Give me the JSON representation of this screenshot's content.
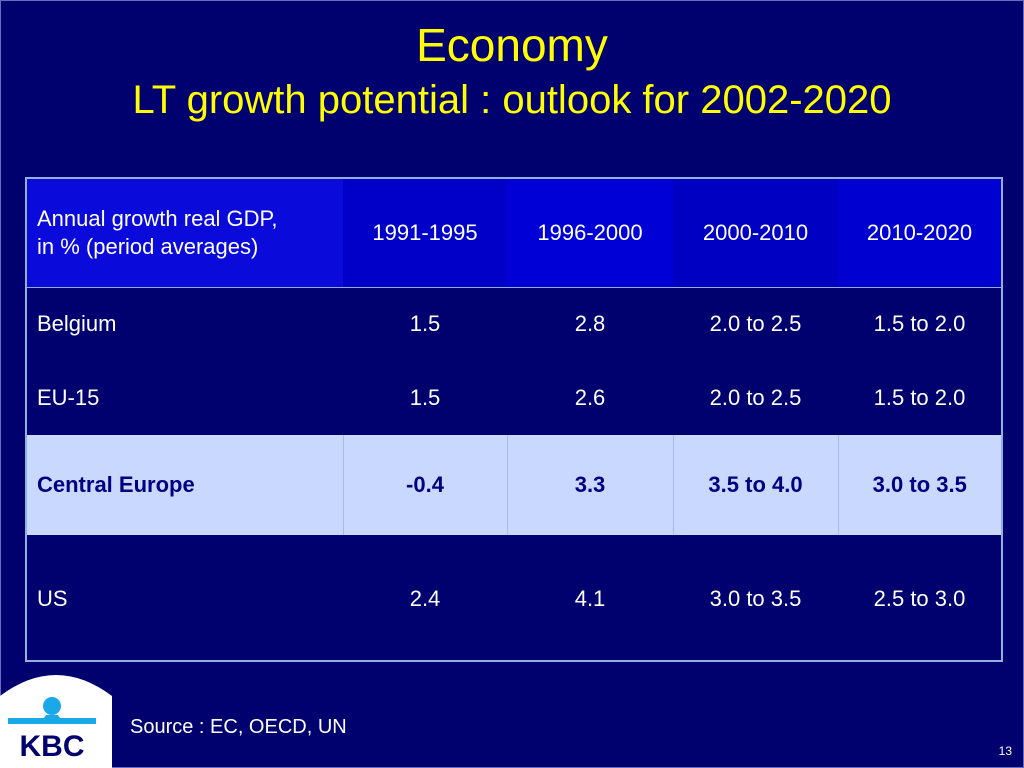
{
  "slide": {
    "title_line1": "Economy",
    "title_line2": "LT growth potential : outlook for 2002-2020",
    "source": "Source : EC, OECD, UN",
    "page_number": "13",
    "logo_text": "KBC"
  },
  "table": {
    "header": [
      "Annual growth real GDP,\nin % (period averages)",
      "1991-1995",
      "1996-2000",
      "2000-2010",
      "2010-2020"
    ],
    "rows": [
      [
        "Belgium",
        "1.5",
        "2.8",
        "2.0 to 2.5",
        "1.5 to 2.0"
      ],
      [
        "EU-15",
        "1.5",
        "2.6",
        "2.0 to 2.5",
        "1.5 to 2.0"
      ],
      [
        "Central Europe",
        "-0.4",
        "3.3",
        "3.5 to 4.0",
        "3.0 to 3.5"
      ],
      [
        "US",
        "2.4",
        "4.1",
        "3.0 to 3.5",
        "2.5 to 3.0"
      ]
    ]
  },
  "colors": {
    "background": "#00006e",
    "title": "#ffff00",
    "header_bg": "#0000c8",
    "highlight_row_bg": "#c8d8ff",
    "highlight_row_text": "#000080",
    "logo_blue": "#1aa8e8"
  }
}
